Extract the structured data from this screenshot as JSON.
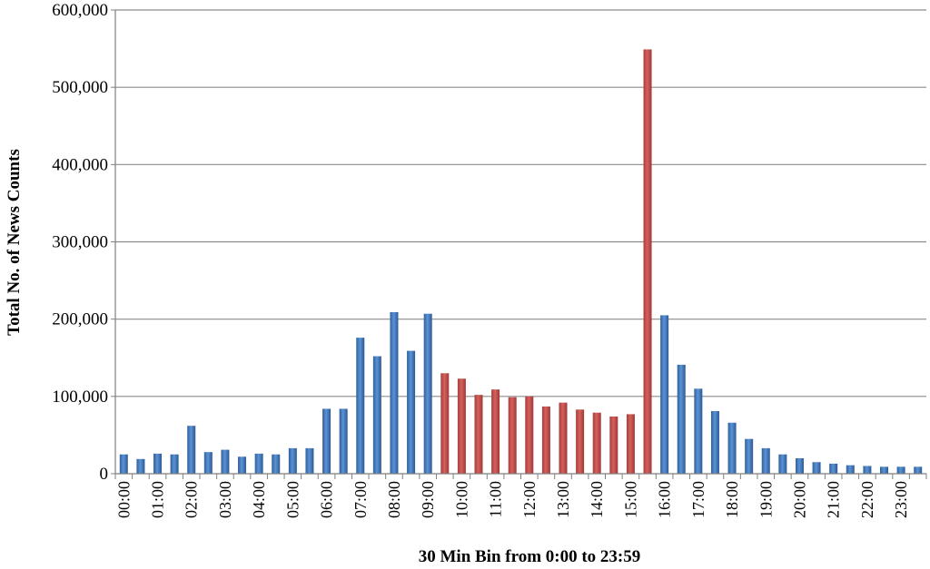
{
  "chart_data": {
    "type": "bar",
    "title": "",
    "xlabel": "30 Min Bin from 0:00 to 23:59",
    "ylabel": "Total No. of News Counts",
    "ylim": [
      0,
      600000
    ],
    "yticks": [
      0,
      100000,
      200000,
      300000,
      400000,
      500000,
      600000
    ],
    "ytick_labels": [
      "0",
      "100,000",
      "200,000",
      "300,000",
      "400,000",
      "500,000",
      "600,000"
    ],
    "grid": true,
    "legend": "none",
    "colors": {
      "blue": "#4a7ebb",
      "red": "#c0504d"
    },
    "categories": [
      "00:00",
      "00:30",
      "01:00",
      "01:30",
      "02:00",
      "02:30",
      "03:00",
      "03:30",
      "04:00",
      "04:30",
      "05:00",
      "05:30",
      "06:00",
      "06:30",
      "07:00",
      "07:30",
      "08:00",
      "08:30",
      "09:00",
      "09:30",
      "10:00",
      "10:30",
      "11:00",
      "11:30",
      "12:00",
      "12:30",
      "13:00",
      "13:30",
      "14:00",
      "14:30",
      "15:00",
      "15:30",
      "16:00",
      "16:30",
      "17:00",
      "17:30",
      "18:00",
      "18:30",
      "19:00",
      "19:30",
      "20:00",
      "20:30",
      "21:00",
      "21:30",
      "22:00",
      "22:30",
      "23:00",
      "23:30"
    ],
    "tick_labels": [
      "00:00",
      "01:00",
      "02:00",
      "03:00",
      "04:00",
      "05:00",
      "06:00",
      "07:00",
      "08:00",
      "09:00",
      "10:00",
      "11:00",
      "12:00",
      "13:00",
      "14:00",
      "15:00",
      "16:00",
      "17:00",
      "18:00",
      "19:00",
      "20:00",
      "21:00",
      "22:00",
      "23:00"
    ],
    "values": [
      25000,
      19000,
      26000,
      25000,
      62000,
      28000,
      31000,
      22000,
      26000,
      25000,
      33000,
      33000,
      84000,
      84000,
      176000,
      152000,
      209000,
      159000,
      207000,
      130000,
      123000,
      102000,
      109000,
      99000,
      100000,
      87000,
      92000,
      83000,
      79000,
      74000,
      77000,
      549000,
      205000,
      141000,
      110000,
      81000,
      66000,
      45000,
      33000,
      25000,
      20000,
      15000,
      13000,
      11000,
      10000,
      9000,
      9000,
      9000
    ],
    "bar_colors": [
      "blue",
      "blue",
      "blue",
      "blue",
      "blue",
      "blue",
      "blue",
      "blue",
      "blue",
      "blue",
      "blue",
      "blue",
      "blue",
      "blue",
      "blue",
      "blue",
      "blue",
      "blue",
      "blue",
      "red",
      "red",
      "red",
      "red",
      "red",
      "red",
      "red",
      "red",
      "red",
      "red",
      "red",
      "red",
      "red",
      "blue",
      "blue",
      "blue",
      "blue",
      "blue",
      "blue",
      "blue",
      "blue",
      "blue",
      "blue",
      "blue",
      "blue",
      "blue",
      "blue",
      "blue",
      "blue"
    ]
  }
}
